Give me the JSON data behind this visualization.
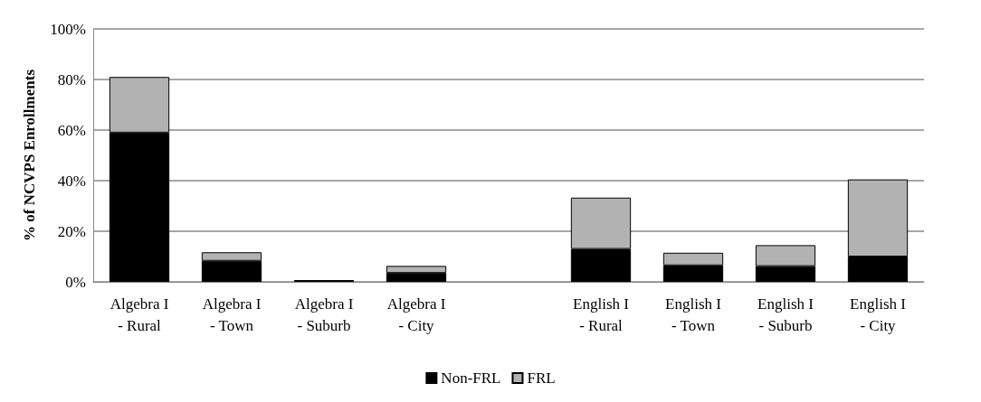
{
  "chart_data": {
    "type": "bar",
    "stacked": true,
    "ylabel": "% of NCVPS Enrollments",
    "categories": [
      "Algebra I - Rural",
      "Algebra I - Town",
      "Algebra I - Suburb",
      "Algebra I - City",
      null,
      "English I - Rural",
      "English I - Town",
      "English I - Suburb",
      "English I - City"
    ],
    "series": [
      {
        "name": "Non-FRL",
        "color": "#000000",
        "values": [
          59,
          8.3,
          0.7,
          3.5,
          null,
          13,
          6.5,
          6.2,
          10
        ]
      },
      {
        "name": "FRL",
        "color": "#b2b2b2",
        "values": [
          22,
          3.4,
          null,
          2.8,
          null,
          20.3,
          5,
          8.3,
          30.5
        ]
      }
    ],
    "ylim": [
      0,
      100
    ],
    "yticks": [
      {
        "value": 0,
        "label": "0%"
      },
      {
        "value": 20,
        "label": "20%"
      },
      {
        "value": 40,
        "label": "40%"
      },
      {
        "value": 60,
        "label": "60%"
      },
      {
        "value": 80,
        "label": "80%"
      },
      {
        "value": 100,
        "label": "100%"
      }
    ],
    "grid": "y",
    "legend": "bottom"
  }
}
